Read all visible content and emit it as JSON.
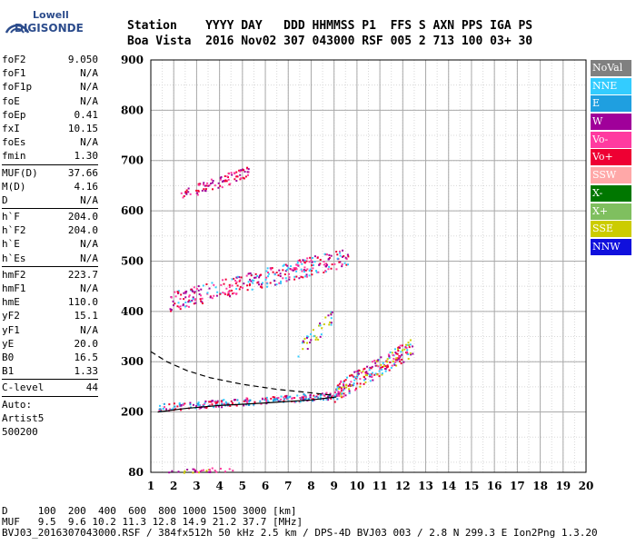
{
  "logo": {
    "line1": "Lowell",
    "line2": "DIGISONDE"
  },
  "header": {
    "line1": "Station    YYYY DAY   DDD HHMMSS P1  FFS S AXN PPS IGA PS",
    "line2": "Boa Vista  2016 Nov02 307 043000 RSF 005 2 713 100 03+ 30"
  },
  "params": [
    {
      "label": "foF2",
      "value": "9.050"
    },
    {
      "label": "foF1",
      "value": "N/A"
    },
    {
      "label": "foF1p",
      "value": "N/A"
    },
    {
      "label": "foE",
      "value": "N/A"
    },
    {
      "label": "foEp",
      "value": "0.41"
    },
    {
      "label": "fxI",
      "value": "10.15"
    },
    {
      "label": "foEs",
      "value": "N/A"
    },
    {
      "label": "fmin",
      "value": "1.30"
    },
    {
      "sep": true
    },
    {
      "label": "MUF(D)",
      "value": "37.66"
    },
    {
      "label": "M(D)",
      "value": "4.16"
    },
    {
      "label": "D",
      "value": "N/A"
    },
    {
      "sep": true
    },
    {
      "label": "h`F",
      "value": "204.0"
    },
    {
      "label": "h`F2",
      "value": "204.0"
    },
    {
      "label": "h`E",
      "value": "N/A"
    },
    {
      "label": "h`Es",
      "value": "N/A"
    },
    {
      "sep": true
    },
    {
      "label": "hmF2",
      "value": "223.7"
    },
    {
      "label": "hmF1",
      "value": "N/A"
    },
    {
      "label": "hmE",
      "value": "110.0"
    },
    {
      "label": "yF2",
      "value": "15.1"
    },
    {
      "label": "yF1",
      "value": "N/A"
    },
    {
      "label": "yE",
      "value": "20.0"
    },
    {
      "label": "B0",
      "value": "16.5"
    },
    {
      "label": "B1",
      "value": "1.33"
    },
    {
      "sep": true
    },
    {
      "label": "C-level",
      "value": "44"
    },
    {
      "sep": true
    },
    {
      "free": "Auto:"
    },
    {
      "free": "Artist5"
    },
    {
      "free": "500200"
    }
  ],
  "legend": [
    {
      "label": "NoVal",
      "color": "#808080"
    },
    {
      "label": "NNE",
      "color": "#33ccff"
    },
    {
      "label": "E",
      "color": "#1f9fe0"
    },
    {
      "label": "W",
      "color": "#a0009a"
    },
    {
      "label": "Vo-",
      "color": "#ff3aa0"
    },
    {
      "label": "Vo+",
      "color": "#ee0033"
    },
    {
      "label": "SSW",
      "color": "#ffa8a8"
    },
    {
      "label": "X-",
      "color": "#007700"
    },
    {
      "label": "X+",
      "color": "#7fbf5f"
    },
    {
      "label": "SSE",
      "color": "#cccc00"
    },
    {
      "label": "NNW",
      "color": "#1010dd"
    }
  ],
  "footer": {
    "line1": "D     100  200  400  600  800 1000 1500 3000 [km]",
    "line2": "MUF   9.5  9.6 10.2 11.3 12.8 14.9 21.2 37.7 [MHz]",
    "line3": "BVJ03_2016307043000.RSF / 384fx512h 50 kHz 2.5 km / DPS-4D BVJ03 003 / 2.8 N 299.3 E Ion2Png 1.3.20"
  },
  "chart_data": {
    "type": "scatter",
    "xlim": [
      1,
      20
    ],
    "ylim": [
      80,
      900
    ],
    "xticks": [
      1,
      2,
      3,
      4,
      5,
      6,
      7,
      8,
      9,
      10,
      11,
      12,
      13,
      14,
      15,
      16,
      17,
      18,
      19,
      20
    ],
    "yticks": [
      80,
      200,
      300,
      400,
      500,
      600,
      700,
      800,
      900
    ],
    "grid": true,
    "regions": [
      {
        "name": "F2 trace",
        "x": [
          1.3,
          9.3
        ],
        "y": [
          210,
          235
        ],
        "colors": [
          "#ee0033",
          "#33ccff",
          "#1f9fe0",
          "#a0009a",
          "#ff3aa0"
        ]
      },
      {
        "name": "F2 trace high",
        "x": [
          9.0,
          12.4
        ],
        "y": [
          240,
          330
        ],
        "colors": [
          "#ee0033",
          "#ff3aa0",
          "#cccc00",
          "#a0009a",
          "#33ccff"
        ]
      },
      {
        "name": "2F2 echo",
        "x": [
          1.8,
          9.6
        ],
        "y": [
          420,
          510
        ],
        "colors": [
          "#ee0033",
          "#a0009a",
          "#33ccff",
          "#ff3aa0"
        ]
      },
      {
        "name": "3F2 echo",
        "x": [
          2.2,
          5.3
        ],
        "y": [
          630,
          680
        ],
        "colors": [
          "#a0009a",
          "#ee0033",
          "#ff3aa0"
        ]
      },
      {
        "name": "spread",
        "x": [
          7.4,
          8.9
        ],
        "y": [
          320,
          390
        ],
        "colors": [
          "#cccc00",
          "#33ccff",
          "#a0009a"
        ]
      },
      {
        "name": "low echo",
        "x": [
          1.7,
          4.6
        ],
        "y": [
          82,
          88
        ],
        "colors": [
          "#a0009a",
          "#ff3aa0",
          "#cccc00"
        ]
      }
    ],
    "traces": [
      {
        "name": "profile-dashed",
        "style": "dashed",
        "points": [
          [
            1.0,
            320
          ],
          [
            1.7,
            300
          ],
          [
            2.6,
            282
          ],
          [
            3.6,
            268
          ],
          [
            5.0,
            255
          ],
          [
            6.5,
            245
          ],
          [
            8.0,
            238
          ],
          [
            9.0,
            233
          ]
        ]
      },
      {
        "name": "profile-solid",
        "style": "solid",
        "points": [
          [
            1.3,
            200
          ],
          [
            2.5,
            207
          ],
          [
            4.0,
            213
          ],
          [
            6.0,
            218
          ],
          [
            8.0,
            224
          ],
          [
            9.1,
            230
          ]
        ]
      }
    ]
  }
}
